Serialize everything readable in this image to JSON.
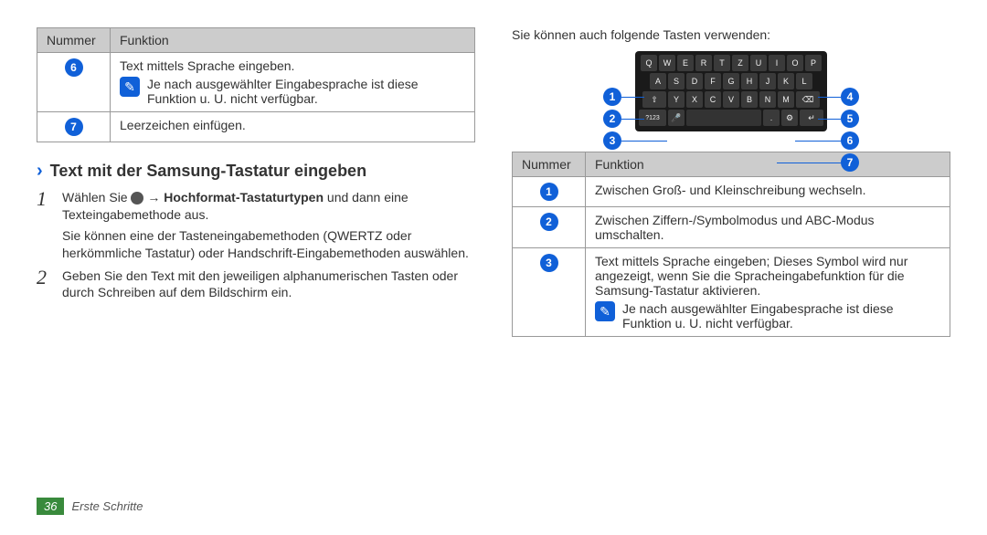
{
  "left": {
    "table": {
      "head_number": "Nummer",
      "head_function": "Funktion",
      "rows": [
        {
          "num": "6",
          "body": "Text mittels Sprache eingeben.",
          "note": "Je nach ausgewählter Eingabesprache ist diese Funktion u. U. nicht verfügbar."
        },
        {
          "num": "7",
          "body": "Leerzeichen einfügen."
        }
      ]
    },
    "section_title": "Text mit der Samsung-Tastatur eingeben",
    "steps": [
      {
        "num": "1",
        "prefix": "Wählen Sie ",
        "arrow": "→",
        "bold": "Hochformat-Tastaturtypen",
        "suffix": " und dann eine Texteingabemethode aus.",
        "para2": "Sie können eine der Tasteneingabemethoden (QWERTZ oder herkömmliche Tastatur) oder Handschrift-Eingabemethoden auswählen."
      },
      {
        "num": "2",
        "text": "Geben Sie den Text mit den jeweiligen alphanumerischen Tasten oder durch Schreiben auf dem Bildschirm ein."
      }
    ]
  },
  "right": {
    "intro": "Sie können auch folgende Tasten verwenden:",
    "keyboard": {
      "row1": [
        "Q",
        "W",
        "E",
        "R",
        "T",
        "Z",
        "U",
        "I",
        "O",
        "P"
      ],
      "row2": [
        "A",
        "S",
        "D",
        "F",
        "G",
        "H",
        "J",
        "K",
        "L"
      ],
      "row3_shift": "⇧",
      "row3": [
        "Y",
        "X",
        "C",
        "V",
        "B",
        "N",
        "M"
      ],
      "row3_del": "⌫",
      "row4_mode": "?123",
      "row4_mic": "🎤",
      "row4_gear": "⚙",
      "row4_enter": "↵"
    },
    "callouts": {
      "c1": "1",
      "c2": "2",
      "c3": "3",
      "c4": "4",
      "c5": "5",
      "c6": "6",
      "c7": "7"
    },
    "table": {
      "head_number": "Nummer",
      "head_function": "Funktion",
      "rows": [
        {
          "num": "1",
          "body": "Zwischen Groß- und Kleinschreibung wechseln."
        },
        {
          "num": "2",
          "body": "Zwischen Ziffern-/Symbolmodus und ABC-Modus umschalten."
        },
        {
          "num": "3",
          "body": "Text mittels Sprache eingeben; Dieses Symbol wird nur angezeigt, wenn Sie die Spracheingabefunktion für die Samsung-Tastatur aktivieren.",
          "note": "Je nach ausgewählter Eingabesprache ist diese Funktion u. U. nicht verfügbar."
        }
      ]
    }
  },
  "footer": {
    "page": "36",
    "label": "Erste Schritte"
  }
}
